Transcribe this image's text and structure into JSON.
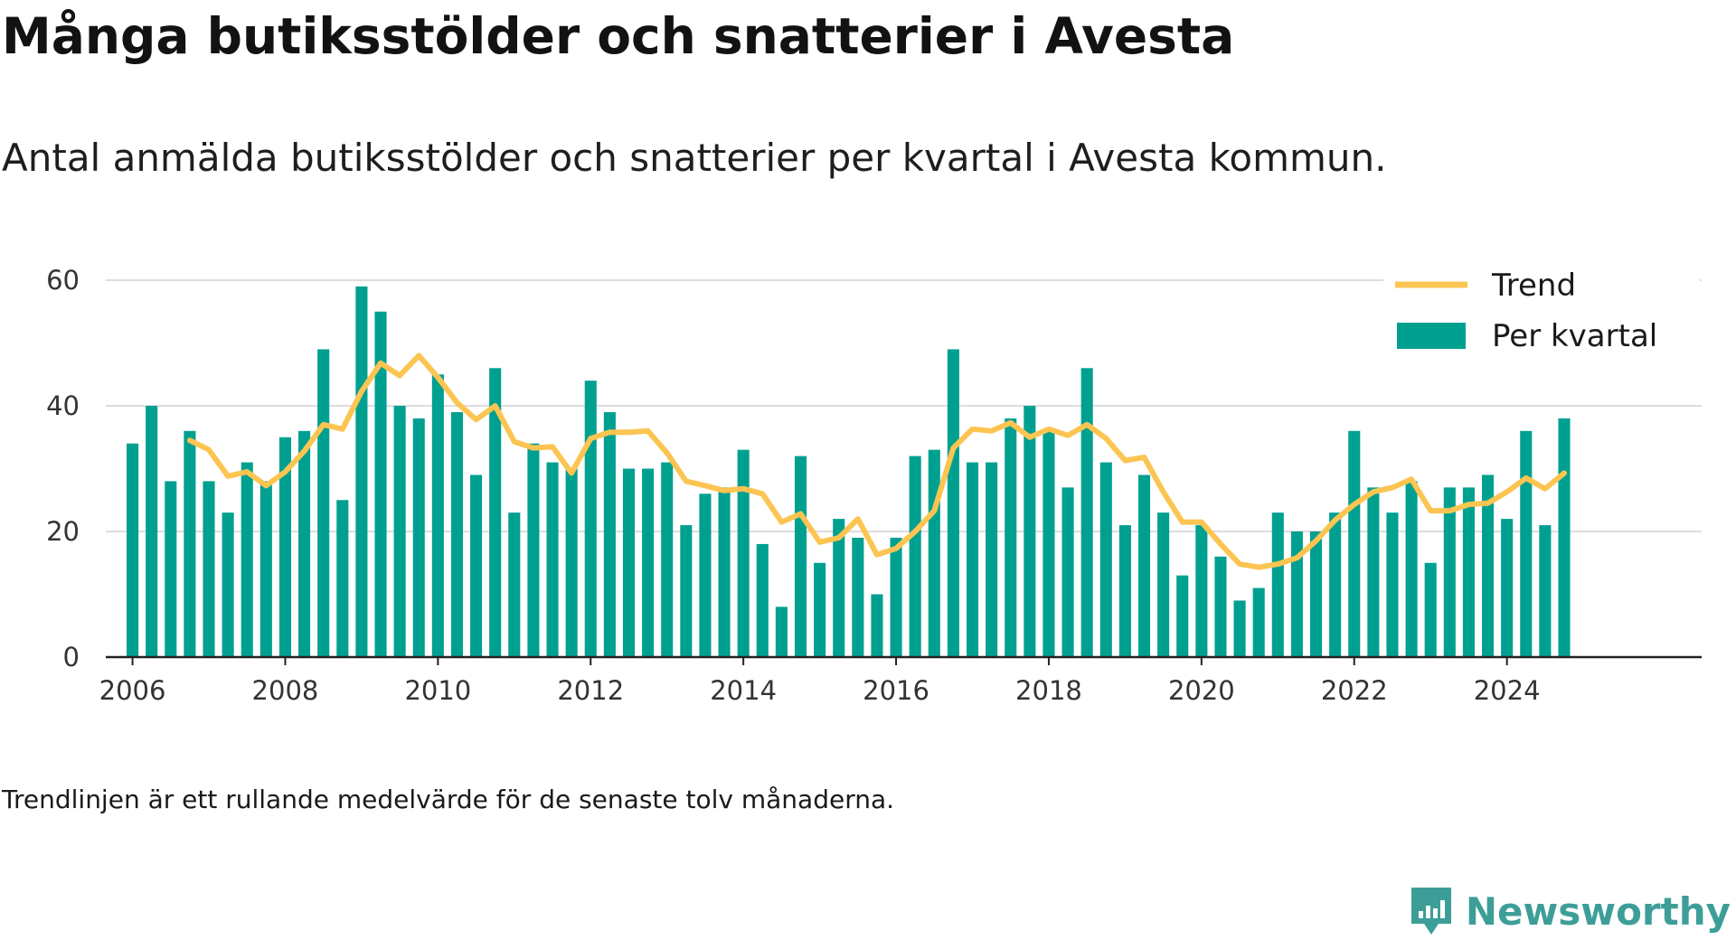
{
  "title": "Många butiksstölder och snatterier i Avesta",
  "subtitle": "Antal anmälda butiksstölder och snatterier per kvartal i Avesta kommun.",
  "footnote": "Trendlinjen är ett rullande medelvärde för de senaste tolv månaderna.",
  "brand": {
    "name": "Newsworthy",
    "color": "#3d9e98"
  },
  "chart_data": {
    "type": "bar",
    "colors": {
      "bars": "#00a091",
      "trend": "#fcc451",
      "grid": "#dddddd",
      "axis": "#222222"
    },
    "legend": {
      "position": "top-right",
      "trend_label": "Trend",
      "bars_label": "Per kvartal"
    },
    "ylim": [
      0,
      60
    ],
    "yticks": [
      0,
      20,
      40,
      60
    ],
    "xlim": [
      2005.65,
      2026.55
    ],
    "xticks": [
      2006,
      2008,
      2010,
      2012,
      2014,
      2016,
      2018,
      2020,
      2022,
      2024
    ],
    "grid": true,
    "series": [
      {
        "name": "Per kvartal",
        "type": "bar",
        "x": [
          2006.0,
          2006.25,
          2006.5,
          2006.75,
          2007.0,
          2007.25,
          2007.5,
          2007.75,
          2008.0,
          2008.25,
          2008.5,
          2008.75,
          2009.0,
          2009.25,
          2009.5,
          2009.75,
          2010.0,
          2010.25,
          2010.5,
          2010.75,
          2011.0,
          2011.25,
          2011.5,
          2011.75,
          2012.0,
          2012.25,
          2012.5,
          2012.75,
          2013.0,
          2013.25,
          2013.5,
          2013.75,
          2014.0,
          2014.25,
          2014.5,
          2014.75,
          2015.0,
          2015.25,
          2015.5,
          2015.75,
          2016.0,
          2016.25,
          2016.5,
          2016.75,
          2017.0,
          2017.25,
          2017.5,
          2017.75,
          2018.0,
          2018.25,
          2018.5,
          2018.75,
          2019.0,
          2019.25,
          2019.5,
          2019.75,
          2020.0,
          2020.25,
          2020.5,
          2020.75,
          2021.0,
          2021.25,
          2021.5,
          2021.75,
          2022.0,
          2022.25,
          2022.5,
          2022.75,
          2023.0,
          2023.25,
          2023.5,
          2023.75,
          2024.0,
          2024.25,
          2024.5,
          2024.75
        ],
        "values": [
          34,
          40,
          28,
          36,
          28,
          23,
          31,
          28,
          35,
          36,
          49,
          25,
          59,
          55,
          40,
          38,
          45,
          39,
          29,
          46,
          23,
          34,
          31,
          30,
          44,
          39,
          30,
          30,
          31,
          21,
          26,
          27,
          33,
          18,
          8,
          32,
          15,
          22,
          19,
          10,
          19,
          32,
          33,
          49,
          31,
          31,
          38,
          40,
          36,
          27,
          46,
          31,
          21,
          29,
          23,
          13,
          21,
          16,
          9,
          11,
          23,
          20,
          20,
          23,
          36,
          27,
          23,
          28,
          15,
          27,
          27,
          29,
          22,
          36,
          21,
          38
        ]
      },
      {
        "name": "Trend",
        "type": "line",
        "x": [
          2006.75,
          2007.0,
          2007.25,
          2007.5,
          2007.75,
          2008.0,
          2008.25,
          2008.5,
          2008.75,
          2009.0,
          2009.25,
          2009.5,
          2009.75,
          2010.0,
          2010.25,
          2010.5,
          2010.75,
          2011.0,
          2011.25,
          2011.5,
          2011.75,
          2012.0,
          2012.25,
          2012.5,
          2012.75,
          2013.0,
          2013.25,
          2013.5,
          2013.75,
          2014.0,
          2014.25,
          2014.5,
          2014.75,
          2015.0,
          2015.25,
          2015.5,
          2015.75,
          2016.0,
          2016.25,
          2016.5,
          2016.75,
          2017.0,
          2017.25,
          2017.5,
          2017.75,
          2018.0,
          2018.25,
          2018.5,
          2018.75,
          2019.0,
          2019.25,
          2019.5,
          2019.75,
          2020.0,
          2020.25,
          2020.5,
          2020.75,
          2021.0,
          2021.25,
          2021.5,
          2021.75,
          2022.0,
          2022.25,
          2022.5,
          2022.75,
          2023.0,
          2023.25,
          2023.5,
          2023.75,
          2024.0,
          2024.25,
          2024.5,
          2024.75
        ],
        "values": [
          34.5,
          33.0,
          28.8,
          29.5,
          27.3,
          29.5,
          32.8,
          37.0,
          36.3,
          42.3,
          46.8,
          44.8,
          48.0,
          44.5,
          40.5,
          37.8,
          40.0,
          34.3,
          33.3,
          33.5,
          29.3,
          34.8,
          35.8,
          35.8,
          36.0,
          32.5,
          28.0,
          27.3,
          26.5,
          26.8,
          26.0,
          21.5,
          22.8,
          18.3,
          19.0,
          22.0,
          16.3,
          17.3,
          20.0,
          23.3,
          33.3,
          36.3,
          36.0,
          37.3,
          35.0,
          36.3,
          35.3,
          37.0,
          34.8,
          31.3,
          31.8,
          26.3,
          21.5,
          21.5,
          18.0,
          14.8,
          14.3,
          14.8,
          15.8,
          18.5,
          21.8,
          24.3,
          26.3,
          27.0,
          28.3,
          23.3,
          23.3,
          24.3,
          24.5,
          26.3,
          28.5,
          26.8,
          29.3
        ]
      }
    ]
  }
}
